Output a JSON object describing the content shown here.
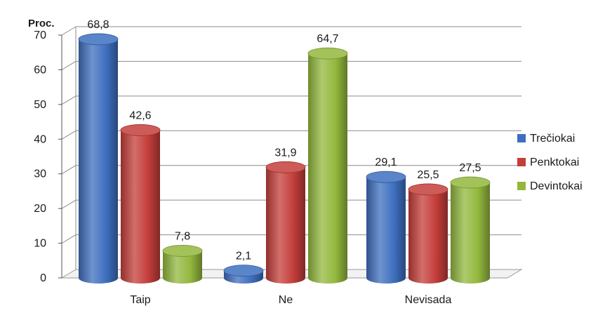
{
  "chart_data": {
    "type": "bar",
    "ylabel": "Proc.",
    "xlabel": "",
    "title": "",
    "ylim": [
      0,
      70
    ],
    "ytick_step": 10,
    "categories": [
      "Taip",
      "Ne",
      "Nevisada"
    ],
    "series": [
      {
        "name": "Trečiokai",
        "values": [
          68.8,
          2.1,
          29.1
        ],
        "labels": [
          "68,8",
          "2,1",
          "29,1"
        ],
        "color": "#3e6fbf"
      },
      {
        "name": "Penktokai",
        "values": [
          42.6,
          31.9,
          25.5
        ],
        "labels": [
          "42,6",
          "31,9",
          "25,5"
        ],
        "color": "#c43e3a"
      },
      {
        "name": "Devintokai",
        "values": [
          7.8,
          64.7,
          27.5
        ],
        "labels": [
          "7,8",
          "64,7",
          "27,5"
        ],
        "color": "#93b83d"
      }
    ],
    "legend_position": "right",
    "grid": true
  }
}
